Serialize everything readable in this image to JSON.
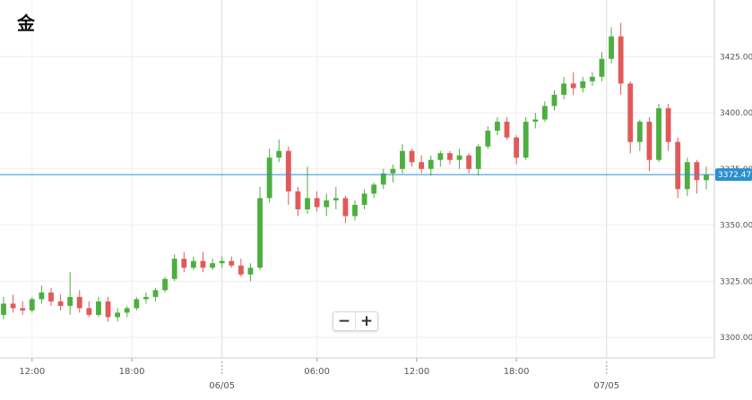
{
  "title": "金",
  "zoom": {
    "minus_label": "−",
    "plus_label": "+"
  },
  "colors": {
    "up": "#4caf3f",
    "down": "#e05a5a",
    "grid": "#eeeeee",
    "price_line": "#2a8fd0",
    "sep": "#cfcfcf"
  },
  "chart_data": {
    "type": "candlestick",
    "title": "金",
    "ylim": [
      3290,
      3440
    ],
    "y_ticks": [
      3300,
      3325,
      3350,
      3375,
      3400,
      3425
    ],
    "y_tick_labels": [
      "3300.00",
      "3325.00",
      "3350.00",
      "3375.00",
      "3400.00",
      "3425.00"
    ],
    "x_tick_labels": [
      {
        "t": 3,
        "label": "12:00",
        "date": ""
      },
      {
        "t": 13.5,
        "label": "18:00",
        "date": ""
      },
      {
        "t": 23,
        "label": "",
        "date": "06/05"
      },
      {
        "t": 33,
        "label": "06:00",
        "date": ""
      },
      {
        "t": 43.5,
        "label": "12:00",
        "date": ""
      },
      {
        "t": 54,
        "label": "18:00",
        "date": ""
      },
      {
        "t": 63.5,
        "label": "",
        "date": "07/05"
      }
    ],
    "current_price": 3372.47,
    "current_price_label": "3372.47",
    "grid": true,
    "candles": [
      [
        3310,
        3318,
        3308,
        3315
      ],
      [
        3315,
        3319,
        3311,
        3313
      ],
      [
        3313,
        3316,
        3310,
        3312
      ],
      [
        3312,
        3318,
        3311,
        3317
      ],
      [
        3317,
        3323,
        3315,
        3320
      ],
      [
        3320,
        3322,
        3314,
        3316
      ],
      [
        3316,
        3319,
        3312,
        3314
      ],
      [
        3314,
        3329,
        3310,
        3318
      ],
      [
        3318,
        3321,
        3311,
        3313
      ],
      [
        3313,
        3316,
        3309,
        3310
      ],
      [
        3310,
        3318,
        3309,
        3316
      ],
      [
        3316,
        3318,
        3307,
        3309
      ],
      [
        3309,
        3313,
        3307,
        3311
      ],
      [
        3311,
        3314,
        3309,
        3313
      ],
      [
        3313,
        3318,
        3312,
        3317
      ],
      [
        3317,
        3320,
        3315,
        3318
      ],
      [
        3318,
        3322,
        3316,
        3321
      ],
      [
        3321,
        3327,
        3320,
        3326
      ],
      [
        3326,
        3337,
        3325,
        3335
      ],
      [
        3335,
        3338,
        3329,
        3331
      ],
      [
        3331,
        3336,
        3330,
        3334
      ],
      [
        3334,
        3338,
        3329,
        3331
      ],
      [
        3331,
        3335,
        3330,
        3333
      ],
      [
        3333,
        3336,
        3331,
        3334
      ],
      [
        3334,
        3336,
        3331,
        3332
      ],
      [
        3332,
        3335,
        3327,
        3328
      ],
      [
        3328,
        3333,
        3325,
        3331
      ],
      [
        3331,
        3367,
        3330,
        3362
      ],
      [
        3362,
        3384,
        3360,
        3380
      ],
      [
        3380,
        3388,
        3378,
        3383
      ],
      [
        3383,
        3385,
        3359,
        3365
      ],
      [
        3365,
        3367,
        3354,
        3357
      ],
      [
        3357,
        3376,
        3355,
        3362
      ],
      [
        3362,
        3365,
        3356,
        3358
      ],
      [
        3358,
        3364,
        3354,
        3361
      ],
      [
        3361,
        3367,
        3357,
        3362
      ],
      [
        3362,
        3363,
        3351,
        3354
      ],
      [
        3354,
        3361,
        3352,
        3359
      ],
      [
        3359,
        3366,
        3357,
        3364
      ],
      [
        3364,
        3369,
        3362,
        3368
      ],
      [
        3368,
        3375,
        3366,
        3373
      ],
      [
        3373,
        3377,
        3369,
        3375
      ],
      [
        3375,
        3386,
        3373,
        3383
      ],
      [
        3383,
        3384,
        3376,
        3378
      ],
      [
        3378,
        3381,
        3373,
        3375
      ],
      [
        3375,
        3381,
        3372,
        3379
      ],
      [
        3379,
        3383,
        3376,
        3382
      ],
      [
        3382,
        3383,
        3377,
        3379
      ],
      [
        3379,
        3384,
        3375,
        3381
      ],
      [
        3381,
        3382,
        3373,
        3375
      ],
      [
        3375,
        3386,
        3372,
        3385
      ],
      [
        3385,
        3394,
        3384,
        3392
      ],
      [
        3392,
        3398,
        3390,
        3396
      ],
      [
        3396,
        3398,
        3388,
        3389
      ],
      [
        3389,
        3390,
        3377,
        3380
      ],
      [
        3380,
        3398,
        3379,
        3396
      ],
      [
        3396,
        3400,
        3393,
        3397
      ],
      [
        3397,
        3405,
        3396,
        3403
      ],
      [
        3403,
        3410,
        3401,
        3408
      ],
      [
        3408,
        3416,
        3406,
        3413
      ],
      [
        3413,
        3418,
        3408,
        3411
      ],
      [
        3411,
        3416,
        3409,
        3414
      ],
      [
        3414,
        3418,
        3412,
        3416
      ],
      [
        3416,
        3427,
        3414,
        3424
      ],
      [
        3424,
        3438,
        3422,
        3434
      ],
      [
        3434,
        3440,
        3408,
        3413
      ],
      [
        3413,
        3414,
        3382,
        3387
      ],
      [
        3387,
        3397,
        3383,
        3396
      ],
      [
        3396,
        3398,
        3374,
        3379
      ],
      [
        3379,
        3404,
        3378,
        3402
      ],
      [
        3402,
        3404,
        3383,
        3387
      ],
      [
        3387,
        3389,
        3362,
        3366
      ],
      [
        3366,
        3380,
        3363,
        3378
      ],
      [
        3378,
        3379,
        3364,
        3370
      ],
      [
        3370,
        3376,
        3366,
        3372.47
      ]
    ]
  }
}
